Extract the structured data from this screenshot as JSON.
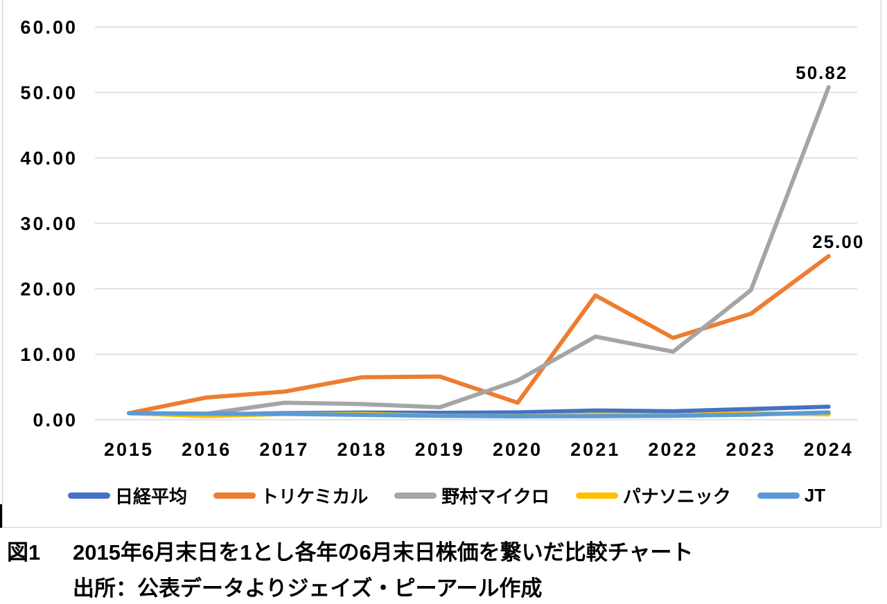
{
  "chart_data": {
    "type": "line",
    "categories": [
      "2015",
      "2016",
      "2017",
      "2018",
      "2019",
      "2020",
      "2021",
      "2022",
      "2023",
      "2024"
    ],
    "yticks": [
      0,
      10,
      20,
      30,
      40,
      50,
      60
    ],
    "ylim": [
      0,
      60
    ],
    "grid": "horizontal",
    "legend_position": "bottom",
    "series": [
      {
        "id": "nikkei",
        "name": "日経平均",
        "color": "#4472C4",
        "values": [
          1.0,
          0.8,
          1.0,
          1.1,
          1.06,
          1.12,
          1.42,
          1.3,
          1.64,
          2.0
        ]
      },
      {
        "id": "trichemical",
        "name": "トリケミカル",
        "color": "#ED7D31",
        "values": [
          1.0,
          3.4,
          4.3,
          6.5,
          6.6,
          2.6,
          19.0,
          12.5,
          16.2,
          25.0
        ],
        "end_label": "25.00"
      },
      {
        "id": "nomura-micro",
        "name": "野村マイクロ",
        "color": "#A5A5A5",
        "values": [
          1.0,
          0.92,
          2.6,
          2.4,
          1.9,
          6.0,
          12.7,
          10.4,
          19.8,
          50.82
        ],
        "end_label": "50.82"
      },
      {
        "id": "panasonic",
        "name": "パナソニック",
        "color": "#FFC000",
        "values": [
          1.0,
          0.56,
          0.88,
          0.9,
          0.62,
          0.58,
          0.78,
          0.66,
          1.02,
          0.82
        ]
      },
      {
        "id": "jt",
        "name": "JT",
        "color": "#5B9BD5",
        "values": [
          1.0,
          0.92,
          0.9,
          0.74,
          0.6,
          0.52,
          0.54,
          0.6,
          0.78,
          1.12
        ]
      }
    ]
  },
  "caption": {
    "figure_label": "図1",
    "title": "2015年6月末日を1とし各年の6月末日株価を繋いだ比較チャート",
    "source": "出所：公表データよりジェイズ・ピーアール作成"
  },
  "colors": {
    "gridline": "#D9D9D9",
    "border": "#D9D9D9",
    "caret": "#000000",
    "text": "#000000"
  }
}
